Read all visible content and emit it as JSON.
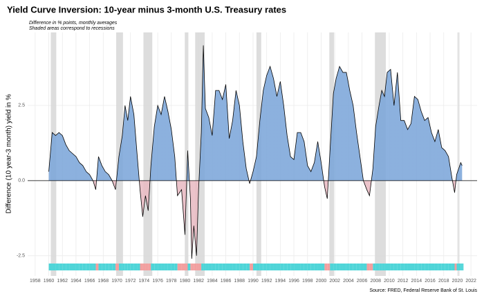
{
  "chart_data": {
    "type": "area",
    "title": "Yield Curve Inversion: 10-year minus 3-month U.S. Treasury rates",
    "subtitle": [
      "Difference in % points, monthly averages",
      "Shaded areas correspond to recessions"
    ],
    "y_label": "Difference (10 year-3 month) yield in %",
    "source": "Source: FRED, Federal Reserve Bank of St. Louis",
    "x": [
      1960.0,
      1960.5,
      1961,
      1961.5,
      1962,
      1962.5,
      1963,
      1963.5,
      1964,
      1964.5,
      1965,
      1965.5,
      1966,
      1966.5,
      1966.9,
      1967.3,
      1967.8,
      1968.3,
      1968.8,
      1969.3,
      1969.8,
      1970.3,
      1970.8,
      1971.2,
      1971.6,
      1972,
      1972.5,
      1973,
      1973.4,
      1973.8,
      1974.2,
      1974.6,
      1975,
      1975.5,
      1976,
      1976.5,
      1977,
      1977.5,
      1978,
      1978.5,
      1978.9,
      1979.5,
      1980.0,
      1980.4,
      1980.8,
      1981.0,
      1981.3,
      1981.7,
      1982.0,
      1982.4,
      1982.7,
      1983.0,
      1983.5,
      1984,
      1984.5,
      1985,
      1985.5,
      1986,
      1986.5,
      1987,
      1987.5,
      1988,
      1988.5,
      1989,
      1989.5,
      1990,
      1990.5,
      1991,
      1991.5,
      1992,
      1992.5,
      1993,
      1993.5,
      1994,
      1994.5,
      1995,
      1995.5,
      1996,
      1996.5,
      1997,
      1997.5,
      1998,
      1998.5,
      1999,
      1999.5,
      2000,
      2000.5,
      2000.9,
      2001.3,
      2001.8,
      2002.2,
      2002.7,
      2003.2,
      2003.7,
      2004.2,
      2004.7,
      2005.2,
      2005.7,
      2006.2,
      2006.7,
      2007.1,
      2007.6,
      2008,
      2008.5,
      2008.9,
      2009.3,
      2009.7,
      2010.2,
      2010.7,
      2011.2,
      2011.7,
      2012.2,
      2012.7,
      2013.2,
      2013.7,
      2014.2,
      2014.7,
      2015.2,
      2015.7,
      2016.2,
      2016.7,
      2017.2,
      2017.7,
      2018.2,
      2018.7,
      2019.2,
      2019.6,
      2019.9,
      2020.2,
      2020.5,
      2020.7
    ],
    "values": [
      0.3,
      1.6,
      1.5,
      1.6,
      1.5,
      1.2,
      1.0,
      0.9,
      0.8,
      0.6,
      0.5,
      0.3,
      0.2,
      0.0,
      -0.3,
      0.8,
      0.5,
      0.3,
      0.2,
      0.0,
      -0.3,
      0.8,
      1.5,
      2.5,
      2.0,
      2.8,
      2.2,
      0.8,
      -0.3,
      -1.2,
      -0.5,
      -1.0,
      0.5,
      1.8,
      2.5,
      2.2,
      2.8,
      2.3,
      1.7,
      0.8,
      -0.5,
      -0.3,
      -1.8,
      1.0,
      -0.6,
      -2.6,
      -1.5,
      -2.5,
      -0.3,
      1.6,
      4.5,
      2.4,
      2.1,
      1.5,
      3.0,
      3.0,
      2.7,
      3.2,
      1.4,
      2.0,
      3.0,
      2.5,
      1.3,
      0.4,
      -0.1,
      0.3,
      0.8,
      2.0,
      3.0,
      3.5,
      3.8,
      3.4,
      2.8,
      3.3,
      2.5,
      1.5,
      0.8,
      0.7,
      1.6,
      1.6,
      1.3,
      0.5,
      0.3,
      0.6,
      1.3,
      0.6,
      -0.2,
      -0.6,
      1.0,
      2.9,
      3.4,
      3.8,
      3.6,
      3.6,
      3.0,
      2.5,
      1.6,
      0.8,
      0.0,
      -0.3,
      -0.5,
      0.4,
      1.8,
      2.5,
      3.0,
      2.8,
      3.6,
      3.7,
      2.5,
      3.6,
      2.0,
      2.0,
      1.7,
      1.9,
      2.8,
      2.7,
      2.3,
      2.0,
      2.1,
      1.6,
      1.3,
      1.7,
      1.1,
      1.0,
      0.8,
      0.1,
      -0.4,
      0.2,
      0.4,
      0.6,
      0.5
    ],
    "recessions": [
      [
        1960.3,
        1961.1
      ],
      [
        1969.9,
        1970.9
      ],
      [
        1973.9,
        1975.2
      ],
      [
        1980.0,
        1980.5
      ],
      [
        1981.5,
        1982.9
      ],
      [
        1990.5,
        1991.2
      ],
      [
        2001.2,
        2001.9
      ],
      [
        2007.9,
        2009.5
      ],
      [
        2020.1,
        2020.3
      ]
    ],
    "xlim": [
      1956.9,
      2022.9
    ],
    "ylim": [
      -3.17,
      4.93
    ],
    "xticks": [
      1958,
      1960,
      1962,
      1964,
      1966,
      1968,
      1970,
      1972,
      1974,
      1976,
      1978,
      1980,
      1982,
      1984,
      1986,
      1988,
      1990,
      1992,
      1994,
      1996,
      1998,
      2000,
      2002,
      2004,
      2006,
      2008,
      2010,
      2012,
      2014,
      2016,
      2018,
      2020,
      2022
    ],
    "yticks": [
      -2.5,
      {
        "value": 0,
        "label": "0.0"
      },
      2.5
    ],
    "grid": true,
    "positive_color": "#7fa8da",
    "negative_color": "#e9bcc4",
    "strip_positive_color": "#4fd5d8",
    "strip_negative_color": "#f2a0a0",
    "recession_color": "#d9d9d9"
  }
}
